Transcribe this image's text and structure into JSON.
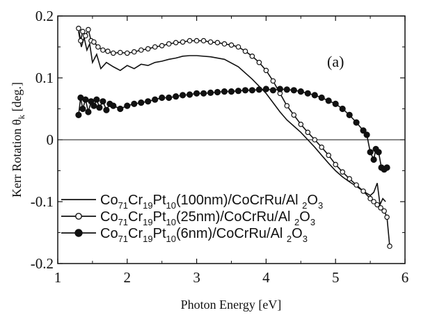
{
  "chart_data": {
    "type": "line",
    "panel_label": "(a)",
    "xlabel": "Photon Energy [eV]",
    "ylabel": "Kerr Rotation θ",
    "ylabel_subscript": "k",
    "ylabel_suffix": " [deg.]",
    "xlim": [
      1,
      6
    ],
    "ylim": [
      -0.2,
      0.2
    ],
    "xticks": [
      1,
      2,
      3,
      4,
      5,
      6
    ],
    "yticks": [
      {
        "value": 0.2,
        "label": "0.2"
      },
      {
        "value": 0.1,
        "label": "0.1"
      },
      {
        "value": 0,
        "label": "0"
      },
      {
        "value": -0.1,
        "label": "-0.1"
      },
      {
        "value": -0.2,
        "label": "-0.2"
      }
    ],
    "zero_line": true,
    "legend_position": "lower-left",
    "series": [
      {
        "legend_parts": [
          {
            "t": "Co",
            "sub": "71"
          },
          {
            "t": "Cr",
            "sub": "19"
          },
          {
            "t": "Pt",
            "sub": "10"
          },
          {
            "t": "(100nm)/CoCrRu/Al"
          },
          {
            "t": " ",
            "sub": "2"
          },
          {
            "t": "O",
            "sub": "3"
          }
        ],
        "marker": "none",
        "x": [
          1.3,
          1.34,
          1.38,
          1.42,
          1.46,
          1.5,
          1.56,
          1.62,
          1.7,
          1.8,
          1.9,
          2.0,
          2.1,
          2.2,
          2.3,
          2.4,
          2.5,
          2.6,
          2.7,
          2.8,
          2.9,
          3.0,
          3.2,
          3.4,
          3.6,
          3.8,
          4.0,
          4.1,
          4.2,
          4.3,
          4.4,
          4.5,
          4.6,
          4.7,
          4.8,
          4.9,
          5.0,
          5.1,
          5.2,
          5.3,
          5.4,
          5.5,
          5.55,
          5.6,
          5.64,
          5.68,
          5.72
        ],
        "y": [
          0.175,
          0.15,
          0.165,
          0.145,
          0.155,
          0.125,
          0.138,
          0.115,
          0.125,
          0.118,
          0.112,
          0.12,
          0.115,
          0.122,
          0.12,
          0.125,
          0.127,
          0.13,
          0.132,
          0.135,
          0.136,
          0.136,
          0.134,
          0.13,
          0.118,
          0.098,
          0.075,
          0.06,
          0.045,
          0.032,
          0.022,
          0.012,
          0.0,
          -0.012,
          -0.025,
          -0.038,
          -0.05,
          -0.06,
          -0.068,
          -0.075,
          -0.083,
          -0.09,
          -0.085,
          -0.07,
          -0.105,
          -0.095,
          -0.1
        ]
      },
      {
        "legend_parts": [
          {
            "t": "Co",
            "sub": "71"
          },
          {
            "t": "Cr",
            "sub": "19"
          },
          {
            "t": "Pt",
            "sub": "10"
          },
          {
            "t": "(25nm)/CoCrRu/Al"
          },
          {
            "t": " ",
            "sub": "2"
          },
          {
            "t": "O",
            "sub": "3"
          }
        ],
        "marker": "open-circle",
        "x": [
          1.3,
          1.33,
          1.36,
          1.4,
          1.44,
          1.48,
          1.52,
          1.58,
          1.65,
          1.72,
          1.8,
          1.9,
          2.0,
          2.1,
          2.2,
          2.3,
          2.4,
          2.5,
          2.6,
          2.7,
          2.8,
          2.9,
          3.0,
          3.1,
          3.2,
          3.3,
          3.4,
          3.5,
          3.6,
          3.7,
          3.8,
          3.9,
          4.0,
          4.1,
          4.2,
          4.3,
          4.4,
          4.5,
          4.6,
          4.7,
          4.8,
          4.9,
          5.0,
          5.1,
          5.2,
          5.3,
          5.4,
          5.5,
          5.55,
          5.6,
          5.65,
          5.7,
          5.74,
          5.78
        ],
        "y": [
          0.18,
          0.16,
          0.175,
          0.168,
          0.178,
          0.16,
          0.158,
          0.15,
          0.145,
          0.143,
          0.14,
          0.141,
          0.14,
          0.142,
          0.145,
          0.147,
          0.15,
          0.152,
          0.155,
          0.157,
          0.158,
          0.16,
          0.16,
          0.16,
          0.158,
          0.157,
          0.155,
          0.153,
          0.15,
          0.143,
          0.135,
          0.125,
          0.112,
          0.095,
          0.075,
          0.055,
          0.04,
          0.025,
          0.012,
          0.0,
          -0.012,
          -0.025,
          -0.04,
          -0.052,
          -0.063,
          -0.073,
          -0.083,
          -0.095,
          -0.1,
          -0.105,
          -0.11,
          -0.115,
          -0.125,
          -0.172
        ]
      },
      {
        "legend_parts": [
          {
            "t": "Co",
            "sub": "71"
          },
          {
            "t": "Cr",
            "sub": "19"
          },
          {
            "t": "Pt",
            "sub": "10"
          },
          {
            "t": "(6nm)/CoCrRu/Al"
          },
          {
            "t": " ",
            "sub": "2"
          },
          {
            "t": "O",
            "sub": "3"
          }
        ],
        "marker": "filled-circle",
        "x": [
          1.3,
          1.33,
          1.36,
          1.4,
          1.44,
          1.48,
          1.52,
          1.56,
          1.6,
          1.65,
          1.7,
          1.75,
          1.8,
          1.9,
          2.0,
          2.1,
          2.2,
          2.3,
          2.4,
          2.5,
          2.6,
          2.7,
          2.8,
          2.9,
          3.0,
          3.1,
          3.2,
          3.3,
          3.4,
          3.5,
          3.6,
          3.7,
          3.8,
          3.9,
          4.0,
          4.1,
          4.2,
          4.3,
          4.4,
          4.5,
          4.6,
          4.7,
          4.8,
          4.9,
          5.0,
          5.1,
          5.2,
          5.3,
          5.4,
          5.45,
          5.5,
          5.55,
          5.58,
          5.62,
          5.66,
          5.7,
          5.74
        ],
        "y": [
          0.04,
          0.068,
          0.05,
          0.065,
          0.045,
          0.062,
          0.055,
          0.065,
          0.052,
          0.062,
          0.048,
          0.058,
          0.055,
          0.05,
          0.055,
          0.058,
          0.06,
          0.062,
          0.065,
          0.068,
          0.068,
          0.07,
          0.072,
          0.073,
          0.075,
          0.075,
          0.076,
          0.077,
          0.078,
          0.078,
          0.079,
          0.08,
          0.08,
          0.081,
          0.082,
          0.08,
          0.082,
          0.081,
          0.08,
          0.078,
          0.075,
          0.072,
          0.068,
          0.063,
          0.058,
          0.05,
          0.04,
          0.028,
          0.015,
          0.008,
          -0.02,
          -0.032,
          -0.015,
          -0.02,
          -0.045,
          -0.048,
          -0.045
        ]
      }
    ]
  }
}
